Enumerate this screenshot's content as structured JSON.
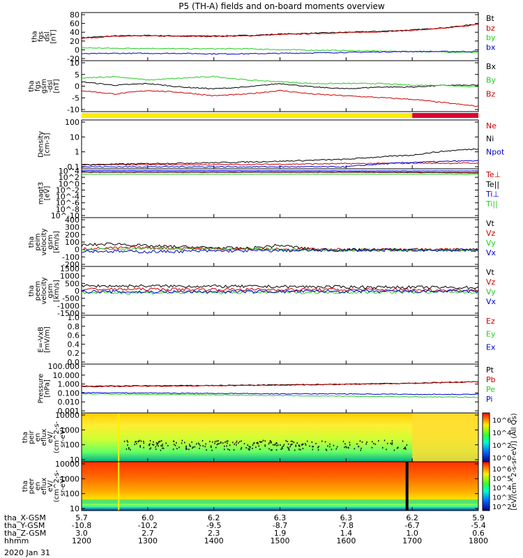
{
  "title": "P5 (TH-A) fields and on-board moments overview",
  "date_label": "2020 Jan 31",
  "colors": {
    "black": "#000000",
    "red": "#cc0000",
    "green": "#22cc22",
    "blue": "#0000cc",
    "yellow": "#ffee00",
    "bar_red": "#dd0033"
  },
  "footer": {
    "rows": [
      {
        "label": "tha_X-GSM",
        "values": [
          "5.7",
          "6.0",
          "6.2",
          "6.3",
          "6.3",
          "6.2",
          "5.9"
        ]
      },
      {
        "label": "tha_Y-GSM",
        "values": [
          "-10.8",
          "-10.2",
          "-9.5",
          "-8.7",
          "-7.8",
          "-6.7",
          "-5.4"
        ]
      },
      {
        "label": "tha_Z-GSM",
        "values": [
          "3.0",
          "2.7",
          "2.3",
          "1.9",
          "1.4",
          "1.0",
          "0.6"
        ]
      },
      {
        "label": "hhmm",
        "values": [
          "1200",
          "1300",
          "1400",
          "1500",
          "1600",
          "1700",
          "1800"
        ]
      }
    ]
  },
  "colorbar": {
    "label": "[eV/(cm^2-s-sr-eV)] (All Qs)",
    "ticks_top": [
      "10^6",
      "10^4",
      "10^2",
      "10^0"
    ],
    "ticks_bottom": [
      "10^6",
      "10^5",
      "10^4",
      "10^3",
      "10^2"
    ]
  },
  "chart_data": [
    {
      "type": "line",
      "id": "fgs_dsl",
      "ylabel_lines": [
        "tha",
        "fgs",
        "dsl",
        "[nT]"
      ],
      "yticks": [
        "80",
        "60",
        "40",
        "20",
        "0",
        "-20"
      ],
      "ylim": [
        -20,
        85
      ],
      "x_range": [
        1200,
        1800
      ],
      "legend": [
        "Bt",
        "bz",
        "by",
        "bx"
      ],
      "series": [
        {
          "name": "Bt",
          "color": "black",
          "x": [
            1200,
            1250,
            1300,
            1350,
            1400,
            1450,
            1500,
            1550,
            1600,
            1650,
            1700,
            1750,
            1800
          ],
          "values": [
            30,
            34,
            35,
            34,
            34,
            35,
            38,
            40,
            42,
            44,
            47,
            52,
            60
          ]
        },
        {
          "name": "bz",
          "color": "red",
          "x": [
            1200,
            1250,
            1300,
            1350,
            1400,
            1450,
            1500,
            1550,
            1600,
            1650,
            1700,
            1750,
            1800
          ],
          "values": [
            29,
            33,
            34,
            33,
            33,
            34,
            37,
            39,
            41,
            43,
            46,
            51,
            59
          ]
        },
        {
          "name": "by",
          "color": "green",
          "x": [
            1200,
            1250,
            1300,
            1350,
            1400,
            1450,
            1500,
            1550,
            1600,
            1650,
            1700,
            1750,
            1800
          ],
          "values": [
            8,
            7,
            7,
            6,
            6,
            6,
            4,
            3,
            2,
            1,
            0,
            -1,
            -2
          ]
        },
        {
          "name": "bx",
          "color": "blue",
          "x": [
            1200,
            1250,
            1300,
            1350,
            1400,
            1450,
            1500,
            1550,
            1600,
            1650,
            1700,
            1750,
            1800
          ],
          "values": [
            -5,
            -4,
            -4,
            -4,
            -5,
            -5,
            -4,
            -3,
            -2,
            -1,
            0,
            0,
            0
          ]
        }
      ]
    },
    {
      "type": "line",
      "id": "fgs_gsm",
      "ylabel_lines": [
        "tha",
        "fgs",
        "gsm",
        "-dsl",
        "[nT]"
      ],
      "yticks": [
        "10",
        "5",
        "0",
        "-5",
        "-10"
      ],
      "ylim": [
        -14,
        15
      ],
      "x_range": [
        1200,
        1800
      ],
      "legend": [
        "Bx",
        "By",
        "Bz"
      ],
      "series": [
        {
          "name": "Bx",
          "color": "black",
          "x": [
            1200,
            1250,
            1300,
            1350,
            1400,
            1450,
            1500,
            1550,
            1600,
            1650,
            1700,
            1750,
            1800
          ],
          "values": [
            3,
            1,
            2,
            0,
            -1,
            0,
            2,
            0,
            -1,
            0,
            0,
            1,
            1
          ]
        },
        {
          "name": "By",
          "color": "green",
          "x": [
            1200,
            1250,
            1300,
            1350,
            1400,
            1450,
            1500,
            1550,
            1600,
            1650,
            1700,
            1750,
            1800
          ],
          "values": [
            5,
            6,
            4,
            5,
            6,
            4,
            3,
            2,
            2,
            2,
            1,
            1,
            0
          ]
        },
        {
          "name": "Bz",
          "color": "red",
          "x": [
            1200,
            1250,
            1300,
            1350,
            1400,
            1450,
            1500,
            1550,
            1600,
            1650,
            1700,
            1750,
            1800
          ],
          "values": [
            -2,
            -4,
            -2,
            -3,
            -5,
            -4,
            -2,
            -4,
            -5,
            -6,
            -7,
            -9,
            -11
          ]
        }
      ]
    },
    {
      "type": "line",
      "id": "density",
      "ylabel_lines": [
        "Density",
        "[cm-3]"
      ],
      "yticks": [
        "100",
        "10",
        "1",
        "0.1"
      ],
      "ylim": [
        0.05,
        200
      ],
      "log": true,
      "x_range": [
        1200,
        1800
      ],
      "legend": [
        "Ne",
        "Ni",
        "Npot"
      ],
      "series": [
        {
          "name": "Ne",
          "color": "red",
          "x": [
            1200,
            1300,
            1400,
            1500,
            1600,
            1700,
            1800
          ],
          "values": [
            0.1,
            0.1,
            0.1,
            0.11,
            0.12,
            0.13,
            0.13
          ]
        },
        {
          "name": "Ni",
          "color": "black",
          "x": [
            1200,
            1300,
            1400,
            1500,
            1600,
            1700,
            1800
          ],
          "values": [
            0.1,
            0.12,
            0.14,
            0.18,
            0.25,
            0.5,
            1.5
          ]
        },
        {
          "name": "Npot",
          "color": "blue",
          "x": [
            1200,
            1300,
            1400,
            1500,
            1600,
            1700,
            1800
          ],
          "values": [
            0.07,
            0.07,
            0.07,
            0.07,
            0.07,
            0.15,
            0.2
          ]
        }
      ]
    },
    {
      "type": "line",
      "id": "temperature",
      "ylabel_lines": [
        "magt3",
        "[eV]"
      ],
      "yticks": [
        "10^4",
        "10^2",
        "10^0",
        "10^-2",
        "10^-4",
        "10^-6",
        "10^-8",
        "10^-10"
      ],
      "ylim": [
        1e-11,
        30000
      ],
      "log": true,
      "x_range": [
        1200,
        1800
      ],
      "legend": [
        "Te⊥",
        "Te||",
        "Ti⊥",
        "Ti||"
      ],
      "series": [
        {
          "name": "Te⊥",
          "color": "red",
          "x": [
            1200,
            1400,
            1600,
            1800
          ],
          "values": [
            3000,
            3000,
            3000,
            2000
          ]
        },
        {
          "name": "Te||",
          "color": "black",
          "x": [
            1200,
            1400,
            1600,
            1800
          ],
          "values": [
            2500,
            2500,
            2500,
            1500
          ]
        },
        {
          "name": "Ti⊥",
          "color": "blue",
          "x": [
            1200,
            1400,
            1600,
            1800
          ],
          "values": [
            8000,
            8000,
            7000,
            6000
          ]
        },
        {
          "name": "Ti||",
          "color": "green",
          "x": [
            1200,
            1400,
            1600,
            1800
          ],
          "values": [
            600,
            600,
            600,
            500
          ]
        }
      ]
    },
    {
      "type": "line",
      "id": "peim_velocity",
      "ylabel_lines": [
        "tha",
        "peim",
        "velocity",
        "gsm",
        "[km/s]"
      ],
      "yticks": [
        "400",
        "300",
        "200",
        "100",
        "0",
        "-100",
        "-200"
      ],
      "ylim": [
        -200,
        400
      ],
      "x_range": [
        1200,
        1800
      ],
      "legend": [
        "Vt",
        "Vz",
        "Vy",
        "Vx"
      ],
      "series": [
        {
          "name": "Vt",
          "color": "black",
          "x": [
            1200,
            1250,
            1300,
            1350,
            1400,
            1450,
            1500,
            1550,
            1600,
            1700,
            1800
          ],
          "values": [
            60,
            80,
            50,
            40,
            30,
            20,
            60,
            10,
            5,
            5,
            5
          ]
        },
        {
          "name": "Vz",
          "color": "red",
          "x": [
            1200,
            1300,
            1400,
            1500,
            1600,
            1700,
            1800
          ],
          "values": [
            20,
            30,
            20,
            10,
            5,
            5,
            5
          ]
        },
        {
          "name": "Vy",
          "color": "green",
          "x": [
            1200,
            1300,
            1400,
            1500,
            1600,
            1700,
            1800
          ],
          "values": [
            10,
            20,
            10,
            5,
            0,
            0,
            0
          ]
        },
        {
          "name": "Vx",
          "color": "blue",
          "x": [
            1200,
            1300,
            1400,
            1500,
            1600,
            1700,
            1800
          ],
          "values": [
            -10,
            -20,
            -10,
            -5,
            0,
            0,
            0
          ]
        }
      ]
    },
    {
      "type": "line",
      "id": "peem_velocity",
      "ylabel_lines": [
        "tha",
        "peem",
        "velocity",
        "gsm",
        "[km/s]"
      ],
      "yticks": [
        "1500",
        "1000",
        "500",
        "0",
        "-500",
        "-1000",
        "-1500"
      ],
      "ylim": [
        -1500,
        1500
      ],
      "x_range": [
        1200,
        1800
      ],
      "legend": [
        "Vt",
        "Vz",
        "Vy",
        "Vx"
      ],
      "series": [
        {
          "name": "Vt",
          "color": "black",
          "x": [
            1200,
            1300,
            1400,
            1500,
            1600,
            1700,
            1800
          ],
          "values": [
            300,
            300,
            280,
            260,
            240,
            220,
            200
          ]
        },
        {
          "name": "Vz",
          "color": "red",
          "x": [
            1200,
            1300,
            1400,
            1500,
            1600,
            1700,
            1800
          ],
          "values": [
            100,
            100,
            90,
            80,
            70,
            60,
            50
          ]
        },
        {
          "name": "Vy",
          "color": "green",
          "x": [
            1200,
            1300,
            1400,
            1500,
            1600,
            1700,
            1800
          ],
          "values": [
            -100,
            -120,
            -100,
            -90,
            -80,
            -80,
            -70
          ]
        },
        {
          "name": "Vx",
          "color": "blue",
          "x": [
            1200,
            1300,
            1400,
            1500,
            1600,
            1700,
            1800
          ],
          "values": [
            -50,
            -60,
            -50,
            -40,
            -30,
            -30,
            -30
          ]
        }
      ]
    },
    {
      "type": "line",
      "id": "efield",
      "ylabel_lines": [
        "E=-VxB",
        "[mV/m]"
      ],
      "yticks": [
        "1.0",
        "0.8",
        "0.6",
        "0.4",
        "0.2",
        "0.0"
      ],
      "ylim": [
        0,
        1
      ],
      "x_range": [
        1200,
        1800
      ],
      "legend": [
        "Ez",
        "Ey",
        "Ex"
      ],
      "series": []
    },
    {
      "type": "line",
      "id": "pressure",
      "ylabel_lines": [
        "Pressure",
        "[nPa]"
      ],
      "yticks": [
        "100.000",
        "10.000",
        "1.000",
        "0.100",
        "0.010",
        "0.001"
      ],
      "ylim": [
        0.001,
        100
      ],
      "log": true,
      "x_range": [
        1200,
        1800
      ],
      "legend": [
        "Pt",
        "Pb",
        "Pe",
        "Pi"
      ],
      "series": [
        {
          "name": "Pt",
          "color": "black",
          "x": [
            1200,
            1300,
            1400,
            1500,
            1600,
            1700,
            1800
          ],
          "values": [
            0.55,
            0.6,
            0.65,
            0.75,
            0.9,
            1.1,
            1.6
          ]
        },
        {
          "name": "Pb",
          "color": "red",
          "x": [
            1200,
            1300,
            1400,
            1500,
            1600,
            1700,
            1800
          ],
          "values": [
            0.5,
            0.55,
            0.6,
            0.7,
            0.85,
            1.05,
            1.5
          ]
        },
        {
          "name": "Pe",
          "color": "green",
          "x": [
            1200,
            1300,
            1400,
            1500,
            1600,
            1700,
            1800
          ],
          "values": [
            0.09,
            0.08,
            0.07,
            0.06,
            0.05,
            0.045,
            0.04
          ]
        },
        {
          "name": "Pi",
          "color": "blue",
          "x": [
            1200,
            1300,
            1400,
            1500,
            1600,
            1700,
            1800
          ],
          "values": [
            0.12,
            0.11,
            0.1,
            0.09,
            0.09,
            0.08,
            0.08
          ]
        }
      ]
    },
    {
      "type": "heatmap",
      "id": "peir_eflux",
      "ylabel_lines": [
        "tha",
        "peir",
        "en",
        "eflux",
        "eV/",
        "(cm^2-s-",
        "sr-eV)"
      ],
      "yticks": [
        "10000",
        "1000",
        "100",
        "10"
      ],
      "ylim": [
        5,
        30000
      ],
      "log": true,
      "x_range": [
        1200,
        1800
      ]
    },
    {
      "type": "heatmap",
      "id": "peer_eflux",
      "ylabel_lines": [
        "tha",
        "peer",
        "en",
        "eflux",
        "eV/",
        "(cm^2-s-",
        "sr-eV)"
      ],
      "yticks": [
        "10000",
        "1000",
        "100",
        "10"
      ],
      "ylim": [
        5,
        30000
      ],
      "log": true,
      "x_range": [
        1200,
        1800
      ]
    }
  ]
}
